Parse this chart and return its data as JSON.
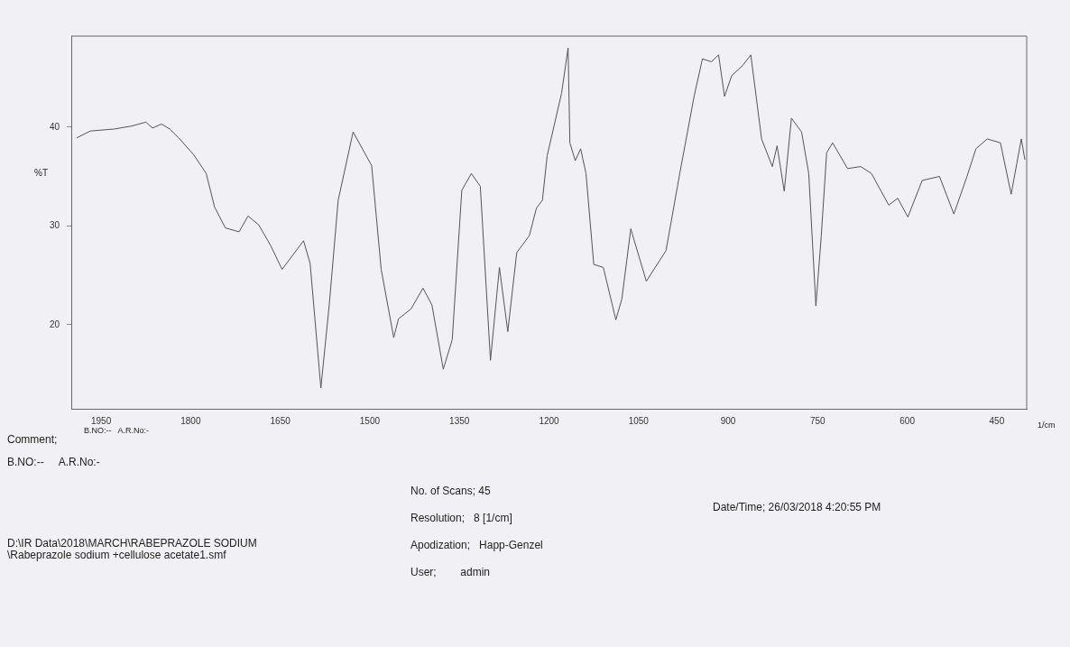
{
  "chart_data": {
    "type": "line",
    "xlabel": "1/cm",
    "ylabel": "%T",
    "annotations": [
      "B.NO:--   A.R.No:-",
      "Comment;",
      "B.NO:--     A.R.No:-",
      "No. of Scans; 45",
      "Resolution;   8 [1/cm]",
      "Apodization;   Happ-Genzel",
      "User;        admin",
      "Date/Time; 26/03/2018 4:20:55 PM",
      "D:\\IR Data\\2018\\MARCH\\RABEPRAZOLE SODIUM",
      "\\Rabeprazole sodium +cellulose acetate1.smf"
    ],
    "x": [
      1991,
      1968,
      1928,
      1899,
      1875,
      1864,
      1849,
      1835,
      1820,
      1795,
      1774,
      1760,
      1742,
      1719,
      1704,
      1686,
      1666,
      1647,
      1611,
      1600,
      1582,
      1568,
      1553,
      1528,
      1497,
      1481,
      1460,
      1452,
      1431,
      1411,
      1396,
      1377,
      1362,
      1346,
      1330,
      1315,
      1298,
      1283,
      1269,
      1254,
      1233,
      1221,
      1211,
      1203,
      1179,
      1168,
      1165,
      1156,
      1147,
      1138,
      1125,
      1109,
      1088,
      1078,
      1063,
      1037,
      1004,
      981,
      957,
      943,
      928,
      916,
      906,
      894,
      876,
      862,
      844,
      826,
      818,
      806,
      794,
      777,
      765,
      753,
      744,
      735,
      725,
      700,
      678,
      660,
      631,
      616,
      599,
      575,
      546,
      522,
      500,
      485,
      466,
      444,
      426,
      409,
      403
    ],
    "series": [
      {
        "color": "#555555",
        "values": [
          38.9,
          39.6,
          39.8,
          40.1,
          40.5,
          39.9,
          40.3,
          39.8,
          38.9,
          37.2,
          35.3,
          31.9,
          29.8,
          29.4,
          31.0,
          30.1,
          28.0,
          25.6,
          28.5,
          26.2,
          13.6,
          22.0,
          32.6,
          39.5,
          36.1,
          25.6,
          18.7,
          20.6,
          21.6,
          23.7,
          22.0,
          15.5,
          18.5,
          33.6,
          35.3,
          34.0,
          16.4,
          25.8,
          19.3,
          27.3,
          29.0,
          31.8,
          32.6,
          37.1,
          43.4,
          48.0,
          38.4,
          36.6,
          37.8,
          35.3,
          26.1,
          25.8,
          20.5,
          22.6,
          29.7,
          24.4,
          27.5,
          35.3,
          43.1,
          46.9,
          46.6,
          47.3,
          43.1,
          45.2,
          46.2,
          47.3,
          38.8,
          36.0,
          38.1,
          33.5,
          40.9,
          39.5,
          35.3,
          21.9,
          29.0,
          37.4,
          38.4,
          35.8,
          36.0,
          35.3,
          32.1,
          32.8,
          30.9,
          34.6,
          35.0,
          31.2,
          35.0,
          37.8,
          38.8,
          38.4,
          33.2,
          38.8,
          36.7
        ]
      }
    ],
    "xlim": [
      2000,
      400
    ],
    "ylim": [
      11.5,
      49.2
    ],
    "xticks": [
      1950,
      1800,
      1650,
      1500,
      1350,
      1200,
      1050,
      900,
      750,
      600,
      450
    ],
    "yticks": [
      20,
      30,
      40
    ],
    "grid": false,
    "legend": false,
    "marker": "none"
  }
}
